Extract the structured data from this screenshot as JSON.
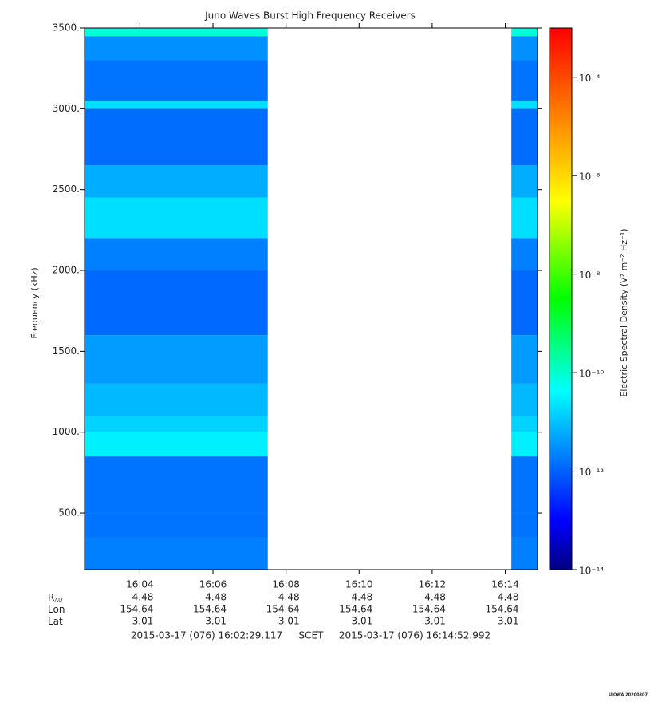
{
  "chart_data": {
    "type": "spectrogram",
    "title": "Juno Waves Burst High Frequency Receivers",
    "ylabel": "Frequency (kHz)",
    "ylim": [
      150,
      3500
    ],
    "yticks": [
      {
        "value": 500,
        "label": "500."
      },
      {
        "value": 1000,
        "label": "1000."
      },
      {
        "value": 1500,
        "label": "1500."
      },
      {
        "value": 2000,
        "label": "2000."
      },
      {
        "value": 2500,
        "label": "2500."
      },
      {
        "value": 3000,
        "label": "3000."
      },
      {
        "value": 3500,
        "label": "3500."
      }
    ],
    "xlim": [
      "2015-03-17T16:02:29.117",
      "2015-03-17T16:14:52.992"
    ],
    "xticks": [
      {
        "value": "2015-03-17T16:04",
        "label": "16:04"
      },
      {
        "value": "2015-03-17T16:06",
        "label": "16:06"
      },
      {
        "value": "2015-03-17T16:08",
        "label": "16:08"
      },
      {
        "value": "2015-03-17T16:10",
        "label": "16:10"
      },
      {
        "value": "2015-03-17T16:12",
        "label": "16:12"
      },
      {
        "value": "2015-03-17T16:14",
        "label": "16:14"
      }
    ],
    "ephemeris": [
      {
        "label": "R",
        "subscript": "AU",
        "values": [
          4.48,
          4.48,
          4.48,
          4.48,
          4.48,
          4.48
        ]
      },
      {
        "label": "Lon",
        "values": [
          154.64,
          154.64,
          154.64,
          154.64,
          154.64,
          154.64
        ]
      },
      {
        "label": "Lat",
        "values": [
          3.01,
          3.01,
          3.01,
          3.01,
          3.01,
          3.01
        ]
      }
    ],
    "footer": [
      "2015-03-17 (076) 16:02:29.117",
      "SCET",
      "2015-03-17 (076) 16:14:52.992"
    ],
    "frequency_bins": [
      150,
      350,
      500,
      850,
      1000,
      1100,
      1300,
      1600,
      2000,
      2200,
      2450,
      2650,
      3000,
      3050,
      3300,
      3450,
      3500
    ],
    "segments": [
      {
        "start": "2015-03-17T16:02:29.117",
        "end": "2015-03-17T16:07:30",
        "density": [
          2e-12,
          1.5e-12,
          1.5e-12,
          3e-11,
          1.5e-11,
          8e-12,
          4e-12,
          1.2e-12,
          2e-12,
          2e-11,
          6e-12,
          1.3e-12,
          2e-11,
          1.5e-12,
          3e-12,
          8e-11
        ]
      },
      {
        "start": "2015-03-17T16:14:10",
        "end": "2015-03-17T16:14:52.992",
        "density": [
          2e-12,
          1.5e-12,
          1.5e-12,
          3e-11,
          1.5e-11,
          8e-12,
          4e-12,
          1.2e-12,
          2e-12,
          2e-11,
          6e-12,
          1.3e-12,
          2e-11,
          1.5e-12,
          3e-12,
          8e-11
        ]
      }
    ],
    "zlabel": "Electric Spectral Density (V² m⁻² Hz⁻¹)",
    "zlog": true,
    "zlim": [
      1e-14,
      0.001
    ],
    "zticks": [
      {
        "value": 1e-14,
        "label": "10⁻¹⁴"
      },
      {
        "value": 1e-12,
        "label": "10⁻¹²"
      },
      {
        "value": 1e-10,
        "label": "10⁻¹⁰"
      },
      {
        "value": 1e-08,
        "label": "10⁻⁸"
      },
      {
        "value": 1e-06,
        "label": "10⁻⁶"
      },
      {
        "value": 0.0001,
        "label": "10⁻⁴"
      }
    ],
    "colormap": [
      "#000080",
      "#0000ff",
      "#00ffff",
      "#00ff00",
      "#ffff00",
      "#ff0000"
    ],
    "stamp": "UIOWA 20200307"
  }
}
